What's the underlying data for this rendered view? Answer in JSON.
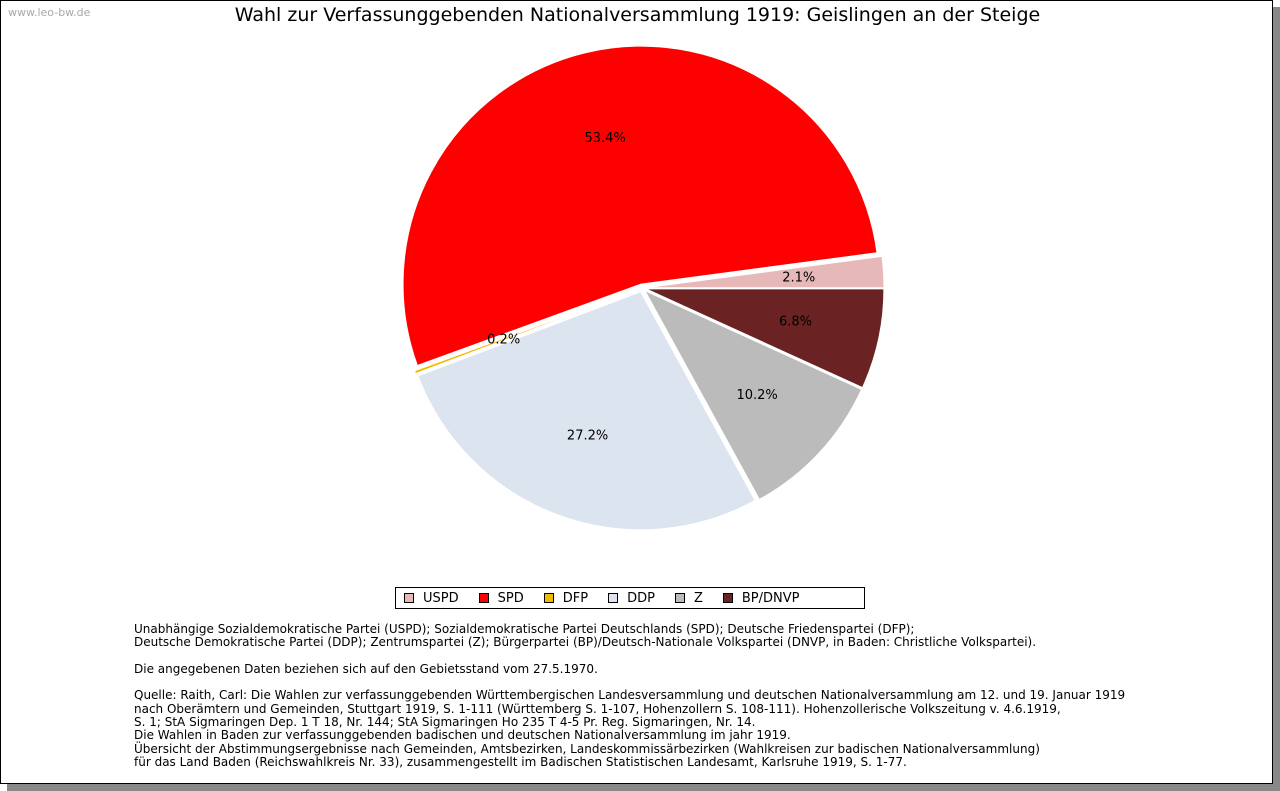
{
  "watermark": "www.leo-bw.de",
  "chart_data": {
    "type": "pie",
    "title": "Wahl zur Verfassunggebenden Nationalversammlung 1919: Geislingen an der Steige",
    "slices": [
      {
        "name": "USPD",
        "value": 2.1,
        "label": "2.1%",
        "color": "#e6b8b8"
      },
      {
        "name": "SPD",
        "value": 53.4,
        "label": "53.4%",
        "color": "#ff0000"
      },
      {
        "name": "DFP",
        "value": 0.2,
        "label": "0.2%",
        "color": "#f5b800"
      },
      {
        "name": "DDP",
        "value": 27.2,
        "label": "27.2%",
        "color": "#dce4f0"
      },
      {
        "name": "Z",
        "value": 10.2,
        "label": "10.2%",
        "color": "#bbbbbb"
      },
      {
        "name": "BP/DNVP",
        "value": 6.8,
        "label": "6.8%",
        "color": "#6b2222"
      }
    ],
    "legend_position": "bottom"
  },
  "notes": [
    "Unabhängige Sozialdemokratische Partei (USPD); Sozialdemokratische Partei Deutschlands (SPD); Deutsche Friedenspartei (DFP);",
    "Deutsche Demokratische Partei (DDP); Zentrumspartei (Z); Bürgerpartei (BP)/Deutsch-Nationale Volkspartei (DNVP, in Baden: Christliche Volkspartei).",
    "",
    "Die angegebenen Daten beziehen sich auf den Gebietsstand vom 27.5.1970.",
    "",
    "Quelle: Raith, Carl: Die Wahlen zur verfassunggebenden Württembergischen Landesversammlung und deutschen Nationalversammlung am 12. und 19. Januar 1919",
    "nach Oberämtern und Gemeinden, Stuttgart 1919, S. 1-111 (Württemberg S. 1-107, Hohenzollern S. 108-111). Hohenzollerische Volkszeitung v. 4.6.1919,",
    "S. 1; StA Sigmaringen Dep. 1 T 18, Nr. 144; StA Sigmaringen Ho 235 T 4-5 Pr. Reg. Sigmaringen, Nr. 14.",
    "Die Wahlen in Baden zur verfassunggebenden badischen und deutschen Nationalversammlung im jahr 1919.",
    "Übersicht der Abstimmungsergebnisse nach Gemeinden, Amtsbezirken, Landeskommissärbezirken (Wahlkreisen zur badischen Nationalversammlung)",
    "für das Land Baden (Reichswahlkreis Nr. 33), zusammengestellt im Badischen Statistischen Landesamt, Karlsruhe 1919, S. 1-77."
  ]
}
